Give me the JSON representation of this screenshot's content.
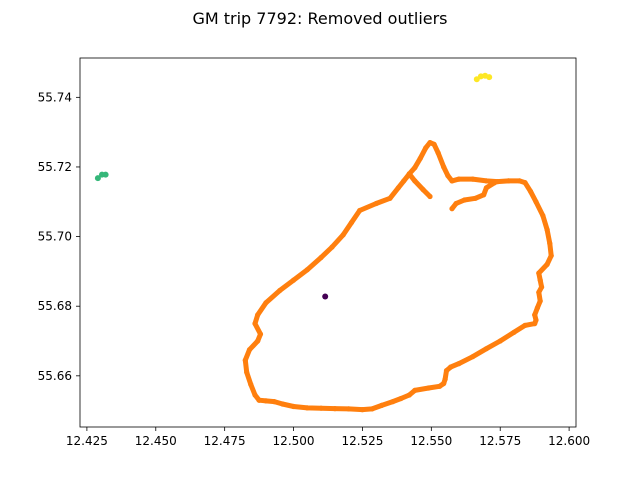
{
  "chart_data": {
    "type": "scatter",
    "title": "GM trip 7792: Removed outliers",
    "xlabel": "",
    "ylabel": "",
    "xlim": [
      12.4225,
      12.6025
    ],
    "ylim": [
      55.6453,
      55.7513
    ],
    "x_ticks": [
      12.425,
      12.45,
      12.475,
      12.5,
      12.525,
      12.55,
      12.575,
      12.6
    ],
    "x_tick_labels": [
      "12.425",
      "12.450",
      "12.475",
      "12.500",
      "12.525",
      "12.550",
      "12.575",
      "12.600"
    ],
    "y_ticks": [
      55.66,
      55.68,
      55.7,
      55.72,
      55.74
    ],
    "y_tick_labels": [
      "55.66",
      "55.68",
      "55.70",
      "55.72",
      "55.74"
    ],
    "grid": false,
    "colors": {
      "route": "#ff7f0e",
      "outlier_yellow": "#fde725",
      "outlier_green": "#35b779",
      "outlier_purple": "#440154"
    },
    "route": [
      [
        12.4875,
        55.653
      ],
      [
        12.49,
        55.6528
      ],
      [
        12.493,
        55.6526
      ],
      [
        12.496,
        55.6519
      ],
      [
        12.5,
        55.6512
      ],
      [
        12.505,
        55.6508
      ],
      [
        12.51,
        55.6507
      ],
      [
        12.515,
        55.6506
      ],
      [
        12.52,
        55.6505
      ],
      [
        12.525,
        55.6503
      ],
      [
        12.5285,
        55.6505
      ],
      [
        12.532,
        55.6515
      ],
      [
        12.536,
        55.6526
      ],
      [
        12.539,
        55.6535
      ],
      [
        12.542,
        55.6545
      ],
      [
        12.544,
        55.6558
      ],
      [
        12.549,
        55.6565
      ],
      [
        12.553,
        55.657
      ],
      [
        12.5545,
        55.6578
      ],
      [
        12.555,
        55.659
      ],
      [
        12.5555,
        55.6615
      ],
      [
        12.557,
        55.6625
      ],
      [
        12.56,
        55.6635
      ],
      [
        12.565,
        55.6655
      ],
      [
        12.57,
        55.6678
      ],
      [
        12.575,
        55.67
      ],
      [
        12.58,
        55.6725
      ],
      [
        12.584,
        55.6745
      ],
      [
        12.5875,
        55.675
      ],
      [
        12.588,
        55.676
      ],
      [
        12.5875,
        55.6775
      ],
      [
        12.5885,
        55.6795
      ],
      [
        12.5895,
        55.6815
      ],
      [
        12.589,
        55.684
      ],
      [
        12.59,
        55.6855
      ],
      [
        12.5895,
        55.6875
      ],
      [
        12.589,
        55.6895
      ],
      [
        12.592,
        55.692
      ],
      [
        12.5935,
        55.6945
      ],
      [
        12.593,
        55.698
      ],
      [
        12.592,
        55.702
      ],
      [
        12.5905,
        55.706
      ],
      [
        12.588,
        55.71
      ],
      [
        12.586,
        55.713
      ],
      [
        12.584,
        55.7155
      ],
      [
        12.582,
        55.716
      ],
      [
        12.578,
        55.716
      ],
      [
        12.574,
        55.7158
      ],
      [
        12.57,
        55.716
      ],
      [
        12.565,
        55.7165
      ],
      [
        12.56,
        55.7165
      ],
      [
        12.5575,
        55.716
      ],
      [
        12.556,
        55.7175
      ],
      [
        12.5545,
        55.72
      ],
      [
        12.5525,
        55.724
      ],
      [
        12.551,
        55.7265
      ],
      [
        12.5495,
        55.727
      ],
      [
        12.548,
        55.7255
      ],
      [
        12.546,
        55.7225
      ],
      [
        12.544,
        55.7198
      ],
      [
        12.542,
        55.718
      ],
      [
        12.54,
        55.716
      ],
      [
        12.538,
        55.714
      ],
      [
        12.535,
        55.711
      ],
      [
        12.53,
        55.7095
      ],
      [
        12.524,
        55.7075
      ],
      [
        12.521,
        55.704
      ],
      [
        12.518,
        55.7005
      ],
      [
        12.514,
        55.697
      ],
      [
        12.51,
        55.694
      ],
      [
        12.505,
        55.6905
      ],
      [
        12.5,
        55.6875
      ],
      [
        12.495,
        55.6845
      ],
      [
        12.49,
        55.681
      ],
      [
        12.487,
        55.6775
      ],
      [
        12.486,
        55.675
      ],
      [
        12.488,
        55.672
      ],
      [
        12.487,
        55.67
      ],
      [
        12.484,
        55.6675
      ],
      [
        12.4825,
        55.6645
      ],
      [
        12.483,
        55.661
      ],
      [
        12.4845,
        55.6575
      ],
      [
        12.486,
        55.6545
      ],
      [
        12.4875,
        55.653
      ]
    ],
    "spur": [
      [
        12.542,
        55.718
      ],
      [
        12.544,
        55.716
      ],
      [
        12.547,
        55.7135
      ],
      [
        12.5495,
        55.7115
      ]
    ],
    "spur2": [
      [
        12.5575,
        55.708
      ],
      [
        12.559,
        55.7095
      ],
      [
        12.562,
        55.7105
      ],
      [
        12.566,
        55.711
      ],
      [
        12.569,
        55.712
      ],
      [
        12.57,
        55.714
      ],
      [
        12.573,
        55.7155
      ]
    ],
    "outliers": [
      {
        "color": "#fde725",
        "points": [
          [
            12.5665,
            55.7452
          ],
          [
            12.568,
            55.746
          ],
          [
            12.5695,
            55.7462
          ],
          [
            12.571,
            55.7458
          ]
        ]
      },
      {
        "color": "#35b779",
        "points": [
          [
            12.429,
            55.7168
          ],
          [
            12.4305,
            55.7178
          ],
          [
            12.4318,
            55.7178
          ]
        ]
      },
      {
        "color": "#440154",
        "points": [
          [
            12.5115,
            55.6828
          ]
        ]
      }
    ]
  }
}
